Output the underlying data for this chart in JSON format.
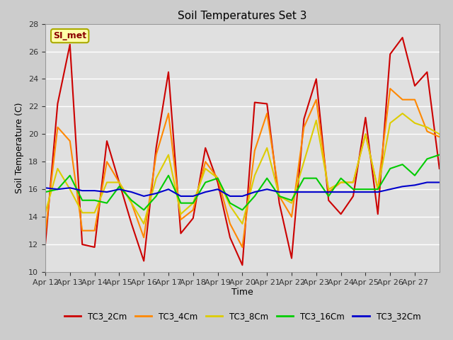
{
  "title": "Soil Temperatures Set 3",
  "xlabel": "Time",
  "ylabel": "Soil Temperature (C)",
  "background_color": "#cccccc",
  "plot_bg_color": "#e0e0e0",
  "ylim": [
    10,
    28
  ],
  "yticks": [
    10,
    12,
    14,
    16,
    18,
    20,
    22,
    24,
    26,
    28
  ],
  "x_tick_labels": [
    "Apr 12",
    "Apr 13",
    "Apr 14",
    "Apr 15",
    "Apr 16",
    "Apr 17",
    "Apr 18",
    "Apr 19",
    "Apr 20",
    "Apr 21",
    "Apr 22",
    "Apr 23",
    "Apr 24",
    "Apr 25",
    "Apr 26",
    "Apr 27"
  ],
  "annotation_text": "SI_met",
  "series": {
    "TC3_2Cm": {
      "color": "#cc0000",
      "y": [
        12.0,
        22.2,
        26.5,
        12.0,
        11.8,
        19.5,
        16.5,
        13.5,
        10.8,
        19.0,
        24.5,
        12.8,
        13.9,
        19.0,
        16.5,
        12.5,
        10.5,
        22.3,
        22.2,
        15.0,
        11.0,
        21.1,
        24.0,
        15.2,
        14.2,
        15.5,
        21.2,
        14.2,
        25.8,
        27.0,
        23.5,
        24.5,
        17.5
      ]
    },
    "TC3_4Cm": {
      "color": "#ff8800",
      "y": [
        12.8,
        20.5,
        19.5,
        13.0,
        13.0,
        18.0,
        16.5,
        15.0,
        12.5,
        18.5,
        21.5,
        13.8,
        14.5,
        18.0,
        16.8,
        13.5,
        11.8,
        18.8,
        21.5,
        15.5,
        14.0,
        20.5,
        22.5,
        15.8,
        16.5,
        16.5,
        20.0,
        16.0,
        23.3,
        22.5,
        22.5,
        20.2,
        19.8
      ]
    },
    "TC3_8Cm": {
      "color": "#ddcc00",
      "y": [
        14.3,
        17.5,
        16.0,
        14.3,
        14.3,
        16.5,
        16.5,
        15.0,
        13.5,
        16.8,
        18.5,
        14.2,
        15.0,
        17.5,
        16.8,
        14.8,
        13.5,
        17.0,
        19.0,
        15.5,
        15.0,
        18.0,
        21.0,
        16.0,
        16.5,
        16.5,
        20.0,
        16.0,
        20.8,
        21.5,
        20.8,
        20.5,
        20.0
      ]
    },
    "TC3_16Cm": {
      "color": "#00cc00",
      "y": [
        15.8,
        16.0,
        17.0,
        15.2,
        15.2,
        15.0,
        16.2,
        15.2,
        14.5,
        15.5,
        17.0,
        15.0,
        15.0,
        16.5,
        16.8,
        15.0,
        14.5,
        15.5,
        16.8,
        15.5,
        15.2,
        16.8,
        16.8,
        15.5,
        16.8,
        16.0,
        16.0,
        16.0,
        17.5,
        17.8,
        17.0,
        18.2,
        18.5
      ]
    },
    "TC3_32Cm": {
      "color": "#0000cc",
      "y": [
        16.1,
        16.0,
        16.1,
        15.9,
        15.9,
        15.8,
        16.0,
        15.8,
        15.5,
        15.7,
        16.0,
        15.5,
        15.5,
        15.8,
        16.0,
        15.5,
        15.5,
        15.8,
        16.0,
        15.8,
        15.8,
        15.8,
        15.8,
        15.8,
        15.8,
        15.8,
        15.8,
        15.8,
        16.0,
        16.2,
        16.3,
        16.5,
        16.5
      ]
    }
  },
  "legend_labels": [
    "TC3_2Cm",
    "TC3_4Cm",
    "TC3_8Cm",
    "TC3_16Cm",
    "TC3_32Cm"
  ]
}
